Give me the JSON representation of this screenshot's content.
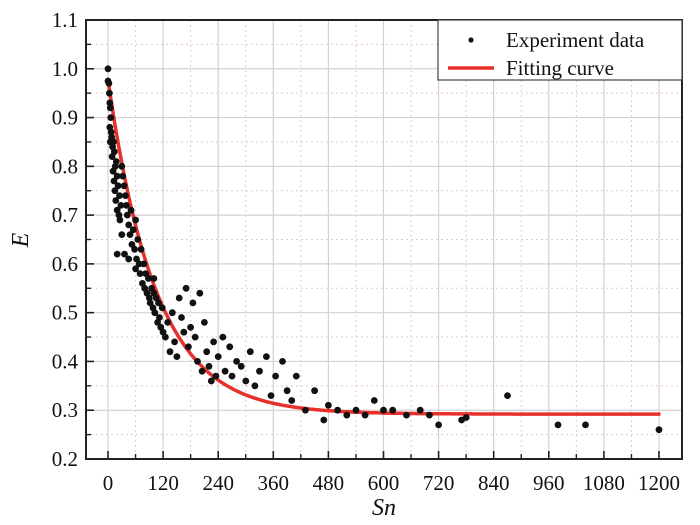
{
  "chart_data": {
    "type": "scatter",
    "title": "",
    "xlabel": "Sn",
    "ylabel": "E",
    "xlim": [
      -30,
      1230
    ],
    "ylim": [
      0.2,
      1.1
    ],
    "xticks": [
      0,
      120,
      240,
      360,
      480,
      600,
      720,
      840,
      960,
      1080,
      1200
    ],
    "yticks": [
      0.2,
      0.3,
      0.4,
      0.5,
      0.6,
      0.7,
      0.8,
      0.9,
      1.0,
      1.1
    ],
    "ytick_labels": [
      "0.2",
      "0.3",
      "0.4",
      "0.5",
      "0.6",
      "0.7",
      "0.8",
      "0.9",
      "1.0",
      "1.1"
    ],
    "grid": true,
    "legend_position": "upper right",
    "legend": [
      {
        "label": "Experiment data",
        "marker": "dot",
        "color": "#111111"
      },
      {
        "label": "Fitting curve",
        "marker": "line",
        "color": "#e8302a"
      }
    ],
    "colors": {
      "data": "#111111",
      "fit": "#e8302a",
      "grid_major": "#d9cfcf",
      "grid_minor": "#e6c9c9",
      "frame": "#222222"
    },
    "series": [
      {
        "name": "Experiment data",
        "kind": "scatter",
        "points": [
          [
            0,
            1.0
          ],
          [
            0,
            0.975
          ],
          [
            2,
            0.97
          ],
          [
            3,
            0.95
          ],
          [
            4,
            0.93
          ],
          [
            5,
            0.92
          ],
          [
            6,
            0.9
          ],
          [
            4,
            0.88
          ],
          [
            7,
            0.87
          ],
          [
            8,
            0.86
          ],
          [
            5,
            0.85
          ],
          [
            10,
            0.84
          ],
          [
            12,
            0.85
          ],
          [
            14,
            0.83
          ],
          [
            9,
            0.82
          ],
          [
            16,
            0.8
          ],
          [
            11,
            0.79
          ],
          [
            18,
            0.81
          ],
          [
            20,
            0.78
          ],
          [
            13,
            0.77
          ],
          [
            22,
            0.76
          ],
          [
            15,
            0.75
          ],
          [
            25,
            0.74
          ],
          [
            17,
            0.73
          ],
          [
            28,
            0.72
          ],
          [
            20,
            0.71
          ],
          [
            30,
            0.8
          ],
          [
            32,
            0.78
          ],
          [
            35,
            0.76
          ],
          [
            24,
            0.7
          ],
          [
            38,
            0.74
          ],
          [
            40,
            0.72
          ],
          [
            26,
            0.69
          ],
          [
            42,
            0.7
          ],
          [
            45,
            0.68
          ],
          [
            30,
            0.66
          ],
          [
            48,
            0.66
          ],
          [
            50,
            0.71
          ],
          [
            52,
            0.64
          ],
          [
            36,
            0.62
          ],
          [
            55,
            0.67
          ],
          [
            58,
            0.63
          ],
          [
            60,
            0.69
          ],
          [
            62,
            0.61
          ],
          [
            65,
            0.65
          ],
          [
            68,
            0.6
          ],
          [
            70,
            0.58
          ],
          [
            72,
            0.63
          ],
          [
            75,
            0.56
          ],
          [
            78,
            0.6
          ],
          [
            80,
            0.55
          ],
          [
            82,
            0.58
          ],
          [
            85,
            0.54
          ],
          [
            88,
            0.57
          ],
          [
            90,
            0.53
          ],
          [
            92,
            0.52
          ],
          [
            95,
            0.55
          ],
          [
            98,
            0.51
          ],
          [
            100,
            0.54
          ],
          [
            102,
            0.5
          ],
          [
            105,
            0.53
          ],
          [
            108,
            0.48
          ],
          [
            110,
            0.52
          ],
          [
            112,
            0.49
          ],
          [
            115,
            0.47
          ],
          [
            118,
            0.51
          ],
          [
            120,
            0.46
          ],
          [
            20,
            0.62
          ],
          [
            45,
            0.61
          ],
          [
            60,
            0.59
          ],
          [
            100,
            0.57
          ],
          [
            125,
            0.45
          ],
          [
            130,
            0.48
          ],
          [
            135,
            0.42
          ],
          [
            140,
            0.5
          ],
          [
            145,
            0.44
          ],
          [
            150,
            0.41
          ],
          [
            155,
            0.53
          ],
          [
            160,
            0.49
          ],
          [
            165,
            0.46
          ],
          [
            170,
            0.55
          ],
          [
            175,
            0.43
          ],
          [
            180,
            0.47
          ],
          [
            185,
            0.52
          ],
          [
            190,
            0.45
          ],
          [
            195,
            0.4
          ],
          [
            200,
            0.54
          ],
          [
            205,
            0.38
          ],
          [
            210,
            0.48
          ],
          [
            215,
            0.42
          ],
          [
            220,
            0.39
          ],
          [
            225,
            0.36
          ],
          [
            230,
            0.44
          ],
          [
            235,
            0.37
          ],
          [
            240,
            0.41
          ],
          [
            250,
            0.45
          ],
          [
            255,
            0.38
          ],
          [
            265,
            0.43
          ],
          [
            270,
            0.37
          ],
          [
            280,
            0.4
          ],
          [
            290,
            0.39
          ],
          [
            300,
            0.36
          ],
          [
            310,
            0.42
          ],
          [
            320,
            0.35
          ],
          [
            330,
            0.38
          ],
          [
            345,
            0.41
          ],
          [
            355,
            0.33
          ],
          [
            365,
            0.37
          ],
          [
            380,
            0.4
          ],
          [
            390,
            0.34
          ],
          [
            400,
            0.32
          ],
          [
            410,
            0.37
          ],
          [
            430,
            0.3
          ],
          [
            450,
            0.34
          ],
          [
            470,
            0.28
          ],
          [
            480,
            0.31
          ],
          [
            500,
            0.3
          ],
          [
            520,
            0.29
          ],
          [
            540,
            0.3
          ],
          [
            560,
            0.29
          ],
          [
            580,
            0.32
          ],
          [
            600,
            0.3
          ],
          [
            620,
            0.3
          ],
          [
            650,
            0.29
          ],
          [
            680,
            0.3
          ],
          [
            700,
            0.29
          ],
          [
            720,
            0.27
          ],
          [
            770,
            0.28
          ],
          [
            780,
            0.285
          ],
          [
            870,
            0.33
          ],
          [
            980,
            0.27
          ],
          [
            1040,
            0.27
          ],
          [
            1200,
            0.26
          ]
        ]
      },
      {
        "name": "Fitting curve",
        "kind": "line",
        "equation": "E = 0.292 + 0.686 * exp(-Sn / 105)",
        "x_range": [
          0,
          1200
        ]
      }
    ]
  }
}
